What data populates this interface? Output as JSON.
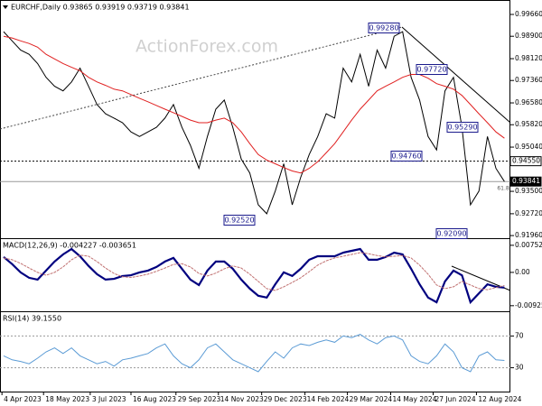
{
  "chart_data": [
    {
      "type": "line",
      "title": "EURCHF,Daily 0.93865 0.93919 0.93719 0.93841",
      "watermark": "ActionForex.com",
      "x": [
        0,
        1,
        2,
        3,
        4,
        5,
        6,
        7,
        8,
        9,
        10,
        11,
        12,
        13,
        14,
        15,
        16,
        17,
        18,
        19,
        20,
        21,
        22,
        23,
        24,
        25,
        26,
        27,
        28,
        29,
        30,
        31,
        32,
        33,
        34,
        35,
        36,
        37,
        38,
        39,
        40,
        41,
        42,
        43,
        44,
        45,
        46,
        47,
        48,
        49,
        50,
        51,
        52,
        53,
        54,
        55,
        56,
        57,
        58,
        59
      ],
      "ylim": [
        0.919,
        1.001
      ],
      "yticks": [
        {
          "value": 0.9966,
          "label": "0.99660"
        },
        {
          "value": 0.989,
          "label": "0.98900"
        },
        {
          "value": 0.9812,
          "label": "0.98120"
        },
        {
          "value": 0.9736,
          "label": "0.97360"
        },
        {
          "value": 0.9658,
          "label": "0.96580"
        },
        {
          "value": 0.9582,
          "label": "0.95820"
        },
        {
          "value": 0.9504,
          "label": "0.95040"
        },
        {
          "value": 0.935,
          "label": "0.93500"
        },
        {
          "value": 0.9272,
          "label": "0.92720"
        },
        {
          "value": 0.9196,
          "label": "0.91960"
        }
      ],
      "levels": [
        {
          "value": 0.9455,
          "label": "0.94550"
        },
        {
          "value": 0.93841,
          "label": "0.93841"
        }
      ],
      "annotations": [
        "0.99280",
        "0.97720",
        "0.95290",
        "0.94760",
        "0.92520",
        "0.92090",
        "61.8"
      ],
      "series": [
        {
          "color": "#000000",
          "values": [
            0.9906,
            0.9874,
            0.9842,
            0.9827,
            0.9795,
            0.9747,
            0.9716,
            0.97,
            0.9731,
            0.9779,
            0.9716,
            0.9652,
            0.962,
            0.9605,
            0.9589,
            0.9557,
            0.9541,
            0.9557,
            0.9573,
            0.9605,
            0.9652,
            0.9573,
            0.951,
            0.943,
            0.9541,
            0.9636,
            0.9668,
            0.9573,
            0.9462,
            0.9414,
            0.9303,
            0.9272,
            0.9351,
            0.9446,
            0.9303,
            0.9399,
            0.9478,
            0.9541,
            0.962,
            0.9605,
            0.9779,
            0.9731,
            0.9827,
            0.9716,
            0.9842,
            0.9779,
            0.989,
            0.9906,
            0.9747,
            0.9668,
            0.9541,
            0.9494,
            0.97,
            0.9747,
            0.9573,
            0.9303,
            0.9351,
            0.9541,
            0.943,
            0.93841
          ]
        },
        {
          "color": "#e02020",
          "values": [
            0.989,
            0.9884,
            0.9874,
            0.9865,
            0.9852,
            0.9827,
            0.9811,
            0.9795,
            0.9782,
            0.977,
            0.9747,
            0.9731,
            0.9719,
            0.9706,
            0.97,
            0.9687,
            0.9674,
            0.9662,
            0.9649,
            0.9636,
            0.9624,
            0.9611,
            0.9598,
            0.9589,
            0.9589,
            0.9598,
            0.9605,
            0.9589,
            0.9557,
            0.9516,
            0.9478,
            0.9459,
            0.9446,
            0.9433,
            0.9421,
            0.9414,
            0.943,
            0.9453,
            0.9484,
            0.9516,
            0.9557,
            0.9598,
            0.9636,
            0.9668,
            0.97,
            0.9716,
            0.9731,
            0.9747,
            0.9757,
            0.9757,
            0.9744,
            0.9725,
            0.9716,
            0.9706,
            0.9684,
            0.9652,
            0.962,
            0.9589,
            0.9557,
            0.9535
          ]
        }
      ]
    },
    {
      "type": "line",
      "title": "MACD(12,26,9) -0.004227 -0.003651",
      "ylim": [
        -0.0108,
        0.009
      ],
      "yticks": [
        0.007525,
        {
          "value": 0,
          "label": "0.00"
        },
        -0.009252
      ],
      "series": [
        {
          "color": "#00007f",
          "values": [
            0.0043,
            0.0023,
            0,
            -0.0015,
            -0.002,
            0.0005,
            0.003,
            0.005,
            0.0065,
            0.0045,
            0.0018,
            -0.0005,
            -0.002,
            -0.0018,
            -0.001,
            -0.0008,
            0,
            0.0005,
            0.0015,
            0.003,
            0.004,
            0.001,
            -0.002,
            -0.0035,
            0.0005,
            0.003,
            0.003,
            0.001,
            -0.002,
            -0.0045,
            -0.0065,
            -0.007,
            -0.0033,
            0,
            -0.001,
            0.001,
            0.0035,
            0.0045,
            0.0045,
            0.0045,
            0.0055,
            0.006,
            0.0065,
            0.0035,
            0.0035,
            0.0043,
            0.0055,
            0.005,
            0.001,
            -0.0033,
            -0.007,
            -0.0083,
            -0.0025,
            0.0005,
            -0.0008,
            -0.0083,
            -0.0058,
            -0.0033,
            -0.004,
            -0.004227
          ]
        },
        {
          "color": "#c07070",
          "values": [
            0.004,
            0.0035,
            0.0025,
            0.0012,
            0,
            -0.0008,
            0,
            0.0015,
            0.0035,
            0.0048,
            0.0045,
            0.003,
            0.0012,
            -0.0003,
            -0.0012,
            -0.0014,
            -0.001,
            -0.0005,
            0.0003,
            0.0012,
            0.0022,
            0.0024,
            0.0015,
            -0.0003,
            -0.001,
            -0.0002,
            0.001,
            0.0018,
            0.0012,
            -0.0005,
            -0.0025,
            -0.0045,
            -0.005,
            -0.004,
            -0.0028,
            -0.0015,
            0.0002,
            0.002,
            0.0032,
            0.004,
            0.0045,
            0.005,
            0.0055,
            0.0052,
            0.0047,
            0.0043,
            0.0045,
            0.0047,
            0.004,
            0.002,
            -0.0005,
            -0.0035,
            -0.0045,
            -0.004,
            -0.0025,
            -0.0035,
            -0.0045,
            -0.0048,
            -0.0042,
            -0.003651
          ]
        }
      ]
    },
    {
      "type": "line",
      "title": "RSI(14) 39.1550",
      "ylim": [
        0,
        100
      ],
      "yticks": [
        70,
        30
      ],
      "xlim": [
        -0.43,
        59.7
      ],
      "xticks": [
        {
          "value": -0.2,
          "label": "4 Apr 2023"
        },
        {
          "value": 4.7,
          "label": "18 May 2023"
        },
        {
          "value": 10.2,
          "label": "3 Jul 2023"
        },
        {
          "value": 15.0,
          "label": "16 Aug 2023"
        },
        {
          "value": 20.3,
          "label": "29 Sep 2023"
        },
        {
          "value": 25.3,
          "label": "14 Nov 2023"
        },
        {
          "value": 30.4,
          "label": "29 Dec 2023"
        },
        {
          "value": 35.5,
          "label": "14 Feb 2024"
        },
        {
          "value": 40.5,
          "label": "29 Mar 2024"
        },
        {
          "value": 45.6,
          "label": "14 May 2024"
        },
        {
          "value": 50.6,
          "label": "27 Jun 2024"
        },
        {
          "value": 55.7,
          "label": "12 Aug 2024"
        }
      ],
      "series": [
        {
          "color": "#5b9bd5",
          "values": [
            45,
            40,
            38,
            35,
            42,
            50,
            55,
            48,
            55,
            45,
            40,
            35,
            38,
            32,
            40,
            42,
            45,
            48,
            55,
            60,
            45,
            35,
            30,
            40,
            55,
            60,
            50,
            40,
            35,
            30,
            25,
            38,
            50,
            42,
            55,
            60,
            58,
            62,
            65,
            62,
            70,
            68,
            72,
            65,
            60,
            68,
            70,
            65,
            45,
            38,
            35,
            45,
            60,
            50,
            30,
            25,
            45,
            50,
            40,
            39.155
          ]
        }
      ]
    }
  ]
}
